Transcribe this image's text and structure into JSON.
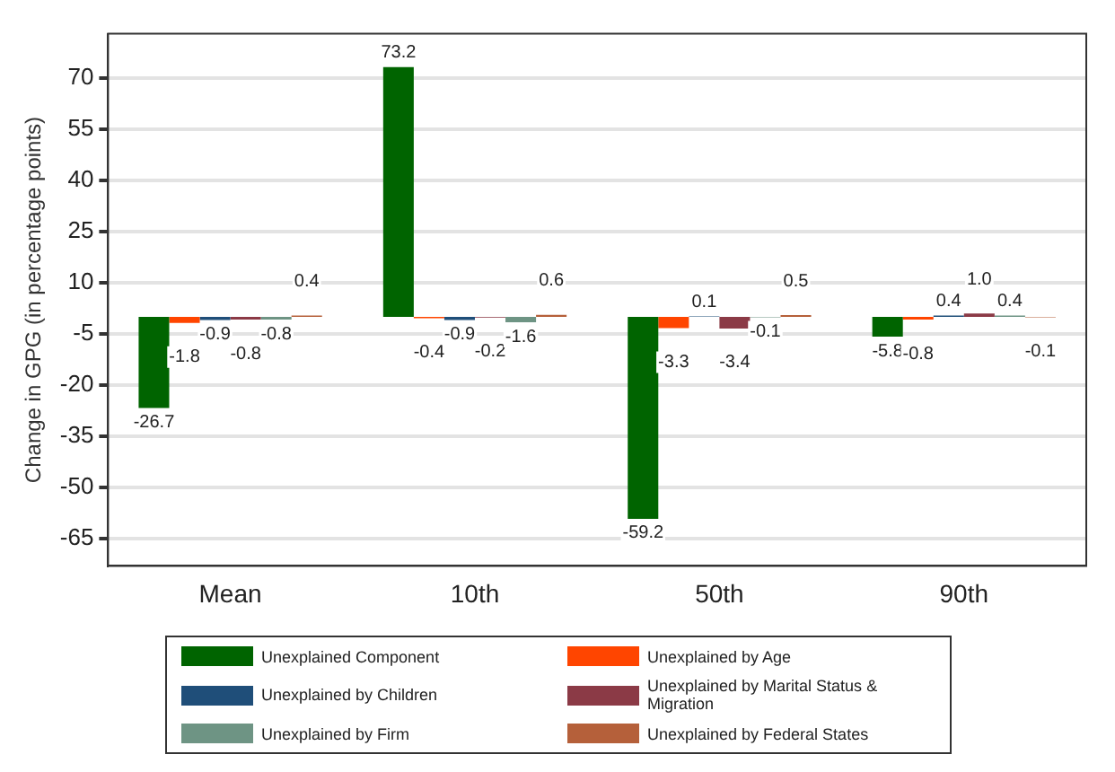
{
  "chart_data": {
    "type": "bar",
    "ylabel": "Change in GPG (in percentage points)",
    "categories": [
      "Mean",
      "10th",
      "50th",
      "90th"
    ],
    "series": [
      {
        "name": "Unexplained Component",
        "color": "#006400",
        "values": [
          -26.7,
          73.2,
          -59.2,
          -5.8
        ],
        "value_labels": [
          "-26.7",
          "73.2",
          "-59.2",
          "-5.8"
        ]
      },
      {
        "name": "Unexplained by Age",
        "color": "#ff4500",
        "values": [
          -1.8,
          -0.4,
          -3.3,
          -0.8
        ],
        "value_labels": [
          "-1.8",
          "-0.4",
          "-3.3",
          "-0.8"
        ]
      },
      {
        "name": "Unexplained by Children",
        "color": "#1f4e79",
        "values": [
          -0.9,
          -0.9,
          0.1,
          0.4
        ],
        "value_labels": [
          "-0.9",
          "-0.9",
          "0.1",
          "0.4"
        ]
      },
      {
        "name": "Unexplained by Marital Status & Migration",
        "color": "#8b3a46",
        "values": [
          -0.8,
          -0.2,
          -3.4,
          1.0
        ],
        "value_labels": [
          "-0.8",
          "-0.2",
          "-3.4",
          "1.0"
        ]
      },
      {
        "name": "Unexplained by Firm",
        "color": "#6e9484",
        "values": [
          -0.8,
          -1.6,
          -0.1,
          0.4
        ],
        "value_labels": [
          "-0.8",
          "-1.6",
          "-0.1",
          "0.4"
        ]
      },
      {
        "name": "Unexplained by Federal States",
        "color": "#b5603a",
        "values": [
          0.4,
          0.6,
          0.5,
          -0.1
        ],
        "value_labels": [
          "0.4",
          "0.6",
          "0.5",
          "-0.1"
        ]
      }
    ],
    "ylim": [
      -73,
      83
    ],
    "yticks": [
      -65,
      -50,
      -35,
      -20,
      -5,
      10,
      25,
      40,
      55,
      70
    ],
    "grid": "y",
    "legend": "bottom"
  }
}
